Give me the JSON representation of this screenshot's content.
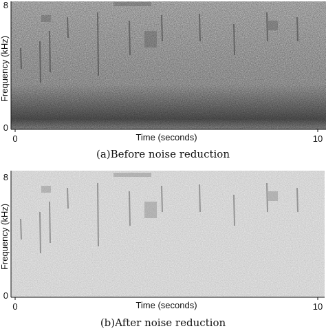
{
  "figures": [
    {
      "caption": "(a)Before noise reduction",
      "chart_data": {
        "type": "heatmap",
        "title": "",
        "xlabel": "Time (seconds)",
        "ylabel": "Frequency (kHz)",
        "xlim": [
          0,
          10
        ],
        "ylim": [
          0,
          8
        ],
        "x_ticks": [
          "0",
          "10"
        ],
        "y_ticks": [
          "8",
          "0"
        ],
        "colormap": "grayscale",
        "background_noise": "heavy"
      }
    },
    {
      "caption": "(b)After noise reduction",
      "chart_data": {
        "type": "heatmap",
        "title": "",
        "xlabel": "Time (seconds)",
        "ylabel": "Frequency (kHz)",
        "xlim": [
          0,
          10
        ],
        "ylim": [
          0,
          8
        ],
        "x_ticks": [
          "0",
          "10"
        ],
        "y_ticks": [
          "8",
          "0"
        ],
        "colormap": "grayscale",
        "background_noise": "reduced"
      }
    }
  ],
  "colors": {
    "axis": "#111111",
    "background_a": "#dcdcdc",
    "background_b": "#f1f1f1"
  }
}
